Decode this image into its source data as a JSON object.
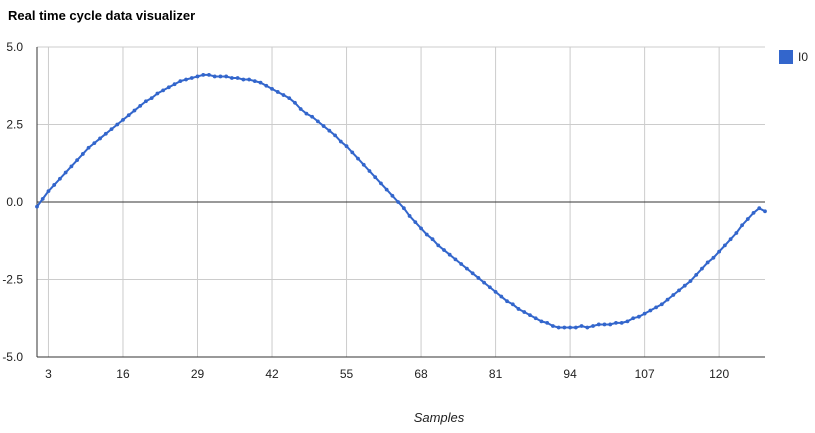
{
  "chart_data": {
    "type": "line",
    "title": "Real time cycle data visualizer",
    "xlabel": "Samples",
    "ylabel": "",
    "xlim": [
      1,
      128
    ],
    "ylim": [
      -5.0,
      5.0
    ],
    "x_ticks": [
      3,
      16,
      29,
      42,
      55,
      68,
      81,
      94,
      107,
      120
    ],
    "y_ticks": [
      {
        "value": -5.0,
        "label": "-5.0"
      },
      {
        "value": -2.5,
        "label": "-2.5"
      },
      {
        "value": 0.0,
        "label": "0.0"
      },
      {
        "value": 2.5,
        "label": "2.5"
      },
      {
        "value": 5.0,
        "label": "5.0"
      }
    ],
    "grid": true,
    "legend_position": "right",
    "series": [
      {
        "name": "I0",
        "color": "#3366cc",
        "x": [
          1,
          2,
          3,
          4,
          5,
          6,
          7,
          8,
          9,
          10,
          11,
          12,
          13,
          14,
          15,
          16,
          17,
          18,
          19,
          20,
          21,
          22,
          23,
          24,
          25,
          26,
          27,
          28,
          29,
          30,
          31,
          32,
          33,
          34,
          35,
          36,
          37,
          38,
          39,
          40,
          41,
          42,
          43,
          44,
          45,
          46,
          47,
          48,
          49,
          50,
          51,
          52,
          53,
          54,
          55,
          56,
          57,
          58,
          59,
          60,
          61,
          62,
          63,
          64,
          65,
          66,
          67,
          68,
          69,
          70,
          71,
          72,
          73,
          74,
          75,
          76,
          77,
          78,
          79,
          80,
          81,
          82,
          83,
          84,
          85,
          86,
          87,
          88,
          89,
          90,
          91,
          92,
          93,
          94,
          95,
          96,
          97,
          98,
          99,
          100,
          101,
          102,
          103,
          104,
          105,
          106,
          107,
          108,
          109,
          110,
          111,
          112,
          113,
          114,
          115,
          116,
          117,
          118,
          119,
          120,
          121,
          122,
          123,
          124,
          125,
          126,
          127,
          128
        ],
        "values": [
          -0.15,
          0.1,
          0.35,
          0.55,
          0.75,
          0.95,
          1.15,
          1.35,
          1.55,
          1.75,
          1.9,
          2.05,
          2.2,
          2.35,
          2.5,
          2.65,
          2.8,
          2.95,
          3.1,
          3.25,
          3.35,
          3.5,
          3.6,
          3.7,
          3.8,
          3.9,
          3.95,
          4.0,
          4.05,
          4.1,
          4.1,
          4.05,
          4.05,
          4.05,
          4.0,
          4.0,
          3.95,
          3.95,
          3.9,
          3.85,
          3.75,
          3.65,
          3.55,
          3.45,
          3.35,
          3.2,
          3.0,
          2.85,
          2.75,
          2.6,
          2.45,
          2.3,
          2.15,
          1.95,
          1.8,
          1.6,
          1.4,
          1.2,
          1.0,
          0.8,
          0.6,
          0.4,
          0.2,
          0.0,
          -0.2,
          -0.45,
          -0.65,
          -0.85,
          -1.05,
          -1.2,
          -1.4,
          -1.55,
          -1.7,
          -1.85,
          -2.0,
          -2.15,
          -2.3,
          -2.45,
          -2.6,
          -2.75,
          -2.9,
          -3.05,
          -3.2,
          -3.3,
          -3.45,
          -3.55,
          -3.65,
          -3.75,
          -3.85,
          -3.9,
          -4.0,
          -4.05,
          -4.05,
          -4.05,
          -4.05,
          -4.0,
          -4.05,
          -4.0,
          -3.95,
          -3.95,
          -3.95,
          -3.9,
          -3.9,
          -3.85,
          -3.75,
          -3.7,
          -3.6,
          -3.5,
          -3.4,
          -3.3,
          -3.15,
          -3.0,
          -2.85,
          -2.7,
          -2.55,
          -2.35,
          -2.15,
          -1.95,
          -1.8,
          -1.6,
          -1.4,
          -1.2,
          -1.0,
          -0.75,
          -0.55,
          -0.35,
          -0.2,
          -0.3
        ]
      }
    ]
  }
}
